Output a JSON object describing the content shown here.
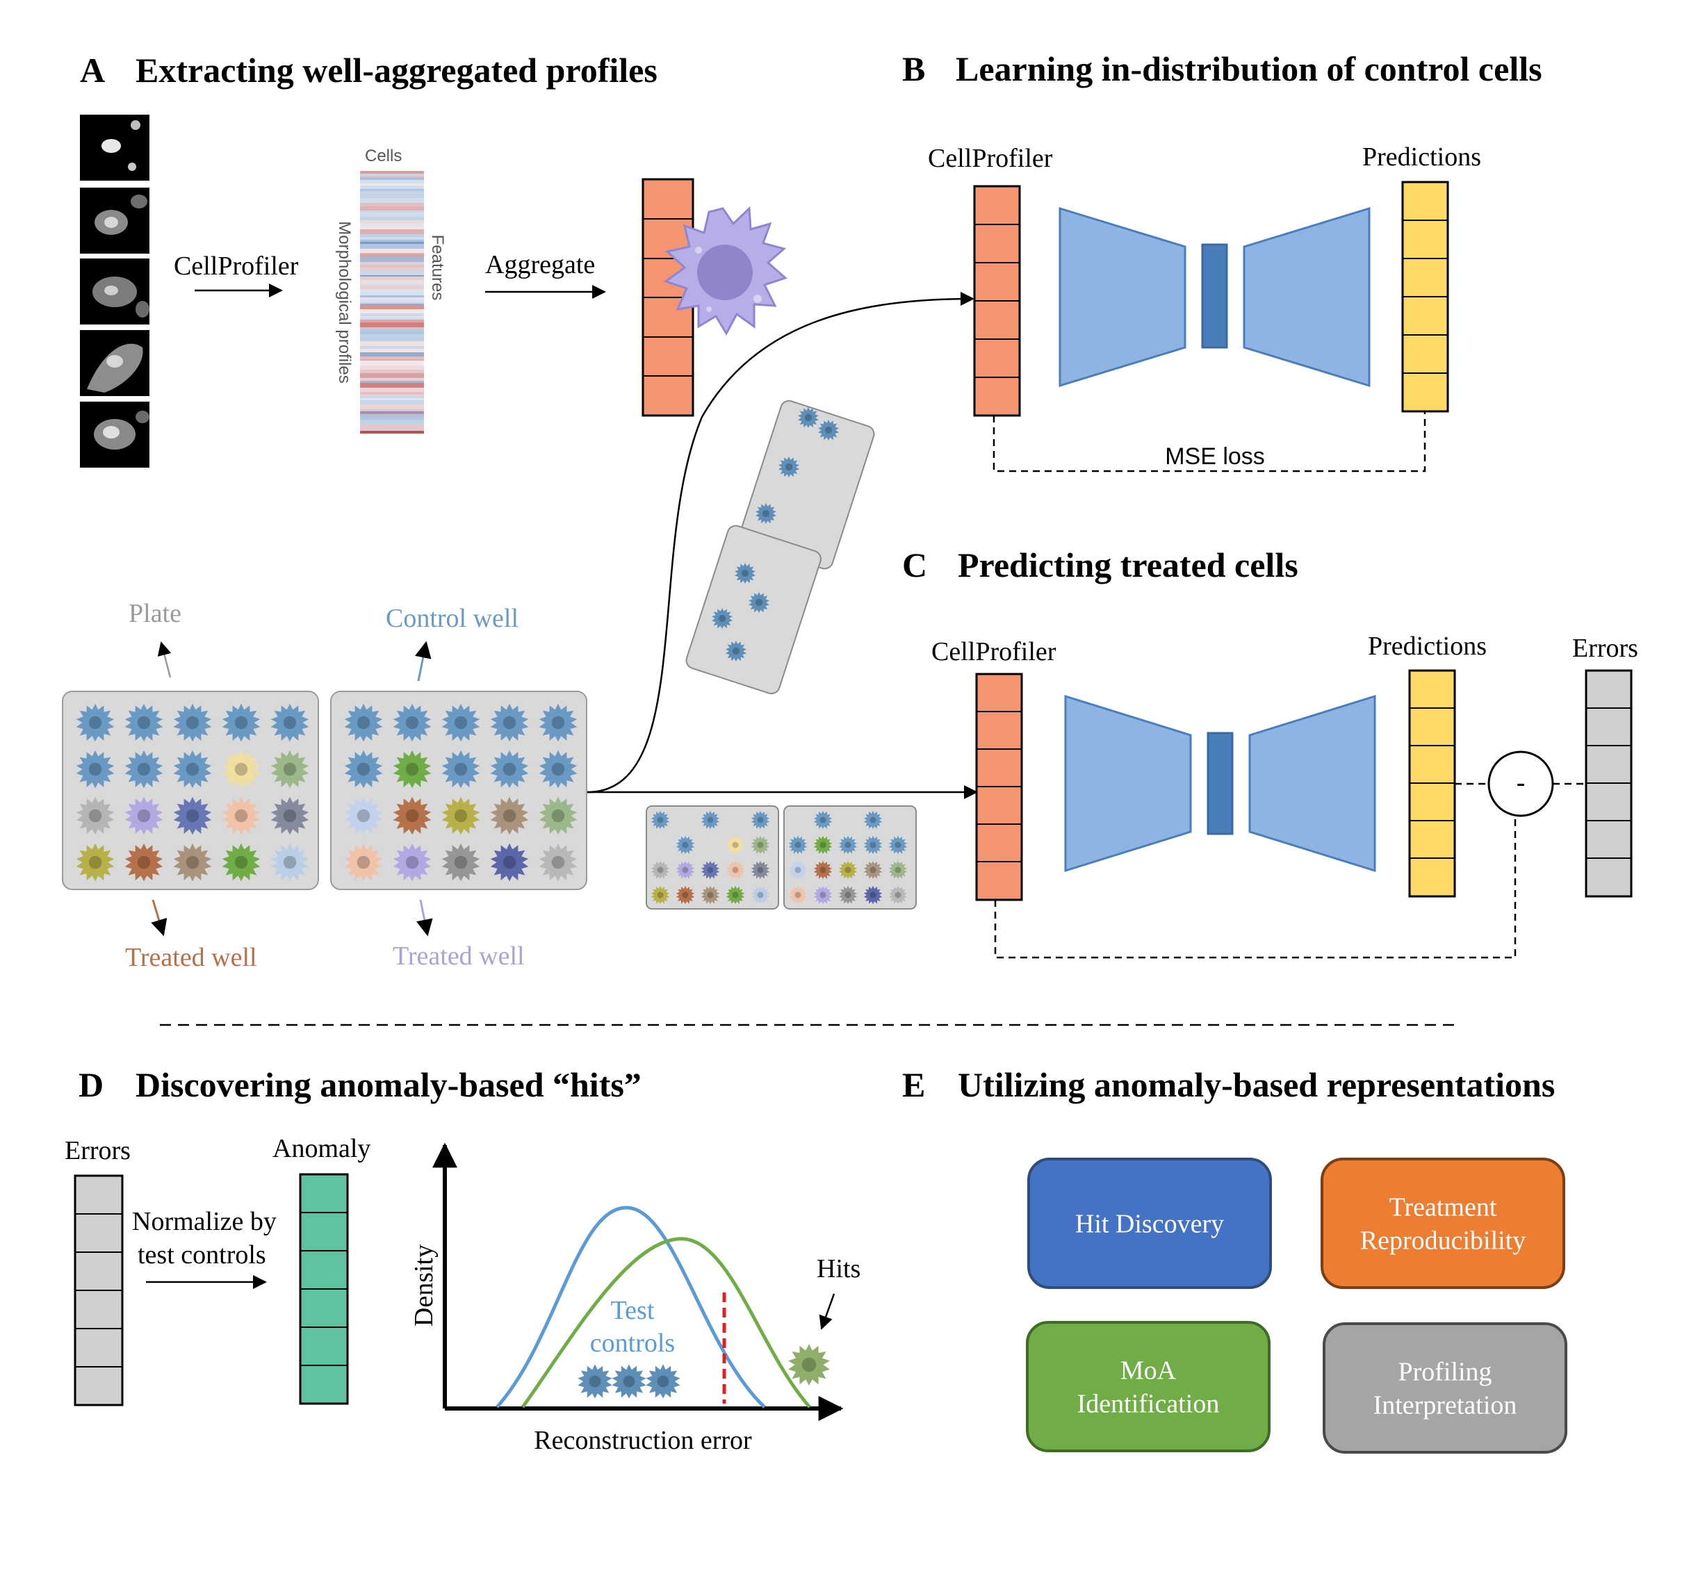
{
  "panels": {
    "a": {
      "letter": "A",
      "title": "Extracting well-aggregated profiles"
    },
    "b": {
      "letter": "B",
      "title": "Learning in-distribution of control cells"
    },
    "c": {
      "letter": "C",
      "title": "Predicting treated cells"
    },
    "d": {
      "letter": "D",
      "title": "Discovering anomaly-based “hits”"
    },
    "e": {
      "letter": "E",
      "title": "Utilizing anomaly-based representations"
    }
  },
  "panel_a": {
    "cellprofiler_label": "CellProfiler",
    "aggregate_label": "Aggregate",
    "heatmap_cells_label": "Cells",
    "heatmap_features_label": "Features",
    "heatmap_profiles_label": "Morphological profiles"
  },
  "plates": {
    "plate_label": "Plate",
    "control_well_label": "Control well",
    "treated_well_label_left": "Treated well",
    "treated_well_label_right": "Treated well",
    "colors": {
      "control": "#6a9ac4",
      "plate_label": "#9a9a9a",
      "treated_left": "#b5714a",
      "treated_right": "#a9a3d8"
    }
  },
  "panel_b": {
    "input_label": "CellProfiler",
    "output_label": "Predictions",
    "loss_label": "MSE loss"
  },
  "panel_c": {
    "input_label": "CellProfiler",
    "output_label": "Predictions",
    "errors_label": "Errors",
    "minus_label": "-"
  },
  "panel_d": {
    "errors_label": "Errors",
    "anomaly_label": "Anomaly",
    "normalize_line1": "Normalize by",
    "normalize_line2": "test controls",
    "y_axis_label": "Density",
    "x_axis_label": "Reconstruction error",
    "test_controls_line1": "Test",
    "test_controls_line2": "controls",
    "hits_label": "Hits"
  },
  "panel_e": {
    "boxes": [
      {
        "lines": [
          "Hit Discovery"
        ],
        "color": "#4472c4"
      },
      {
        "lines": [
          "Treatment",
          "Reproducibility"
        ],
        "color": "#ed7d31"
      },
      {
        "lines": [
          "MoA",
          "Identification"
        ],
        "color": "#70ad47"
      },
      {
        "lines": [
          "Profiling",
          "Interpretation"
        ],
        "color": "#a5a5a5"
      }
    ]
  },
  "palette": {
    "input_vector": "#f4956f",
    "prediction_vector": "#ffd966",
    "error_vector": "#d0d0d0",
    "anomaly_vector": "#5fc3a0",
    "autoencoder": "#8eb4e3",
    "bottleneck": "#4a7ebb",
    "curve_controls": "#5b9bd5",
    "curve_treated": "#70ad47",
    "threshold": "#e02020"
  }
}
